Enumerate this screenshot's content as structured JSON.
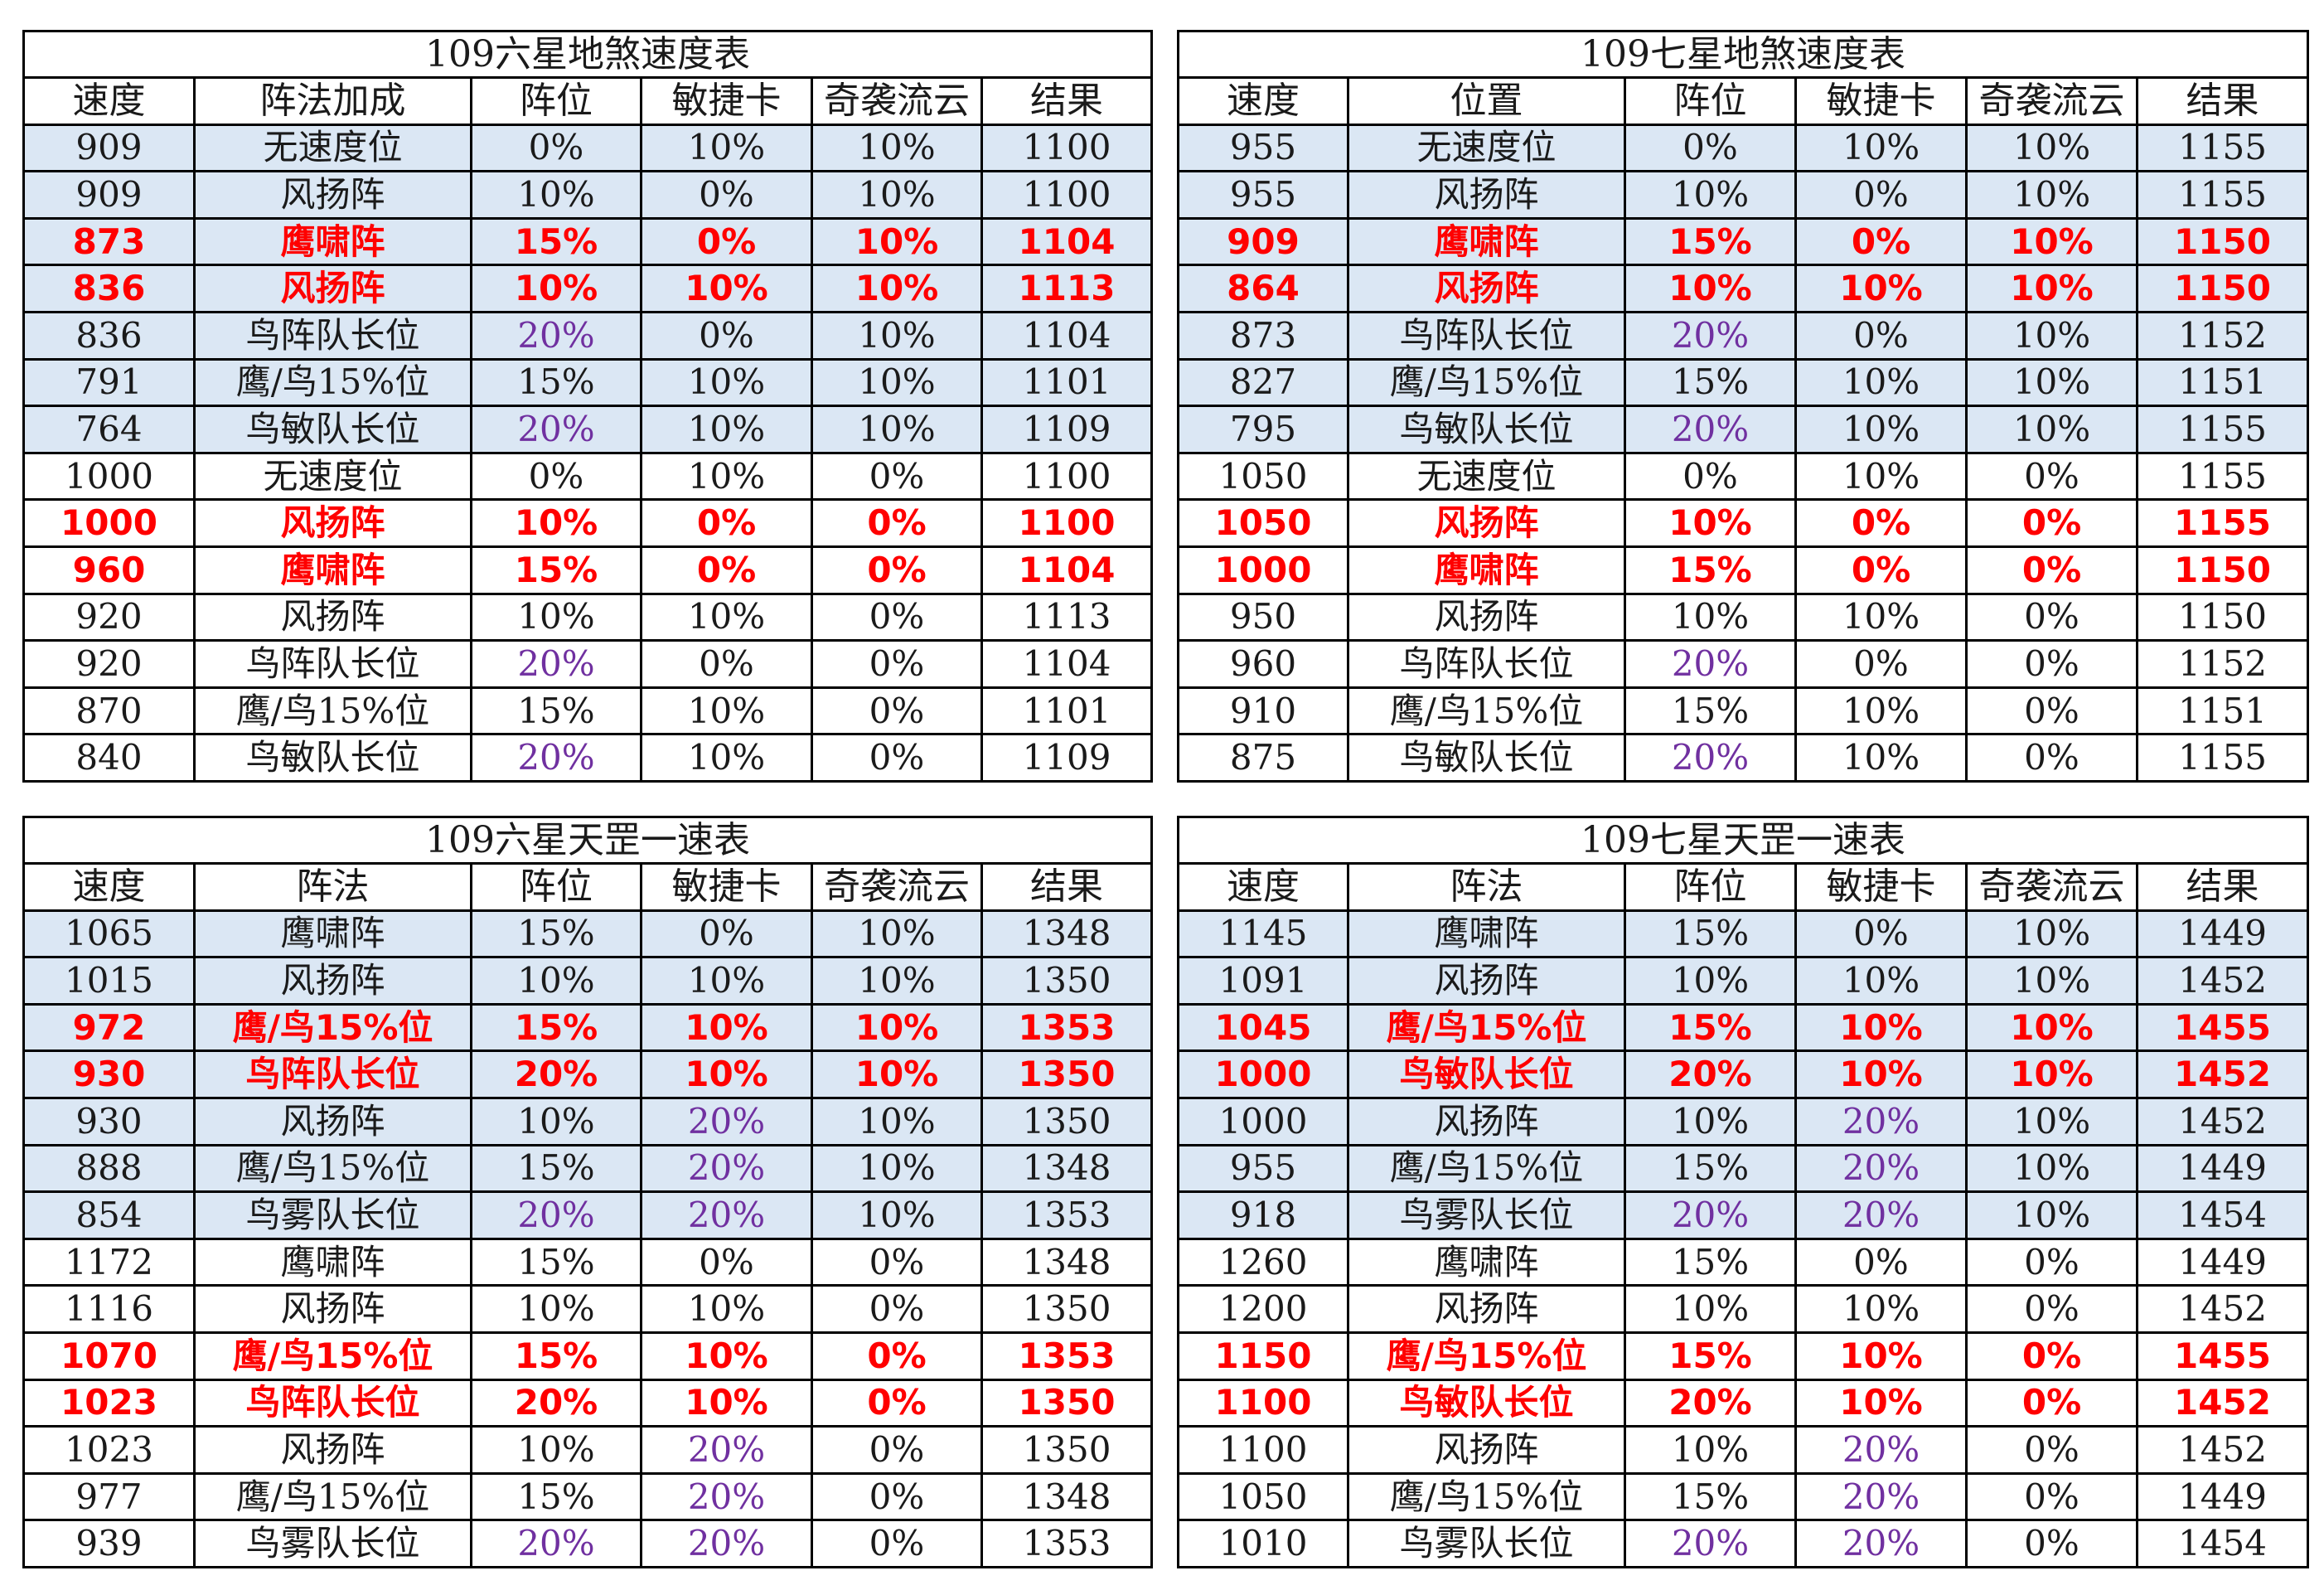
{
  "colors": {
    "highlight_bg": "#dbe7f4",
    "red": "#ff0000",
    "purple": "#7030a0",
    "border": "#000000"
  },
  "tables": [
    {
      "title": "109六星地煞速度表",
      "headers": [
        "速度",
        "阵法加成",
        "阵位",
        "敏捷卡",
        "奇袭流云",
        "结果"
      ],
      "rows": [
        {
          "cells": [
            "909",
            "无速度位",
            "0%",
            "10%",
            "10%",
            "1100"
          ],
          "style": "hl"
        },
        {
          "cells": [
            "909",
            "风扬阵",
            "10%",
            "0%",
            "10%",
            "1100"
          ],
          "style": "hl"
        },
        {
          "cells": [
            "873",
            "鹰啸阵",
            "15%",
            "0%",
            "10%",
            "1104"
          ],
          "style": "hl-red"
        },
        {
          "cells": [
            "836",
            "风扬阵",
            "10%",
            "10%",
            "10%",
            "1113"
          ],
          "style": "hl-red"
        },
        {
          "cells": [
            "836",
            "鸟阵队长位",
            "20%",
            "0%",
            "10%",
            "1104"
          ],
          "style": "hl",
          "purple": [
            2
          ]
        },
        {
          "cells": [
            "791",
            "鹰/鸟15%位",
            "15%",
            "10%",
            "10%",
            "1101"
          ],
          "style": "hl"
        },
        {
          "cells": [
            "764",
            "鸟敏队长位",
            "20%",
            "10%",
            "10%",
            "1109"
          ],
          "style": "hl",
          "purple": [
            2
          ]
        },
        {
          "cells": [
            "1000",
            "无速度位",
            "0%",
            "10%",
            "0%",
            "1100"
          ],
          "style": "plain"
        },
        {
          "cells": [
            "1000",
            "风扬阵",
            "10%",
            "0%",
            "0%",
            "1100"
          ],
          "style": "red"
        },
        {
          "cells": [
            "960",
            "鹰啸阵",
            "15%",
            "0%",
            "0%",
            "1104"
          ],
          "style": "red"
        },
        {
          "cells": [
            "920",
            "风扬阵",
            "10%",
            "10%",
            "0%",
            "1113"
          ],
          "style": "plain"
        },
        {
          "cells": [
            "920",
            "鸟阵队长位",
            "20%",
            "0%",
            "0%",
            "1104"
          ],
          "style": "plain",
          "purple": [
            2
          ]
        },
        {
          "cells": [
            "870",
            "鹰/鸟15%位",
            "15%",
            "10%",
            "0%",
            "1101"
          ],
          "style": "plain"
        },
        {
          "cells": [
            "840",
            "鸟敏队长位",
            "20%",
            "10%",
            "0%",
            "1109"
          ],
          "style": "plain",
          "purple": [
            2
          ]
        }
      ]
    },
    {
      "title": "109七星地煞速度表",
      "headers": [
        "速度",
        "位置",
        "阵位",
        "敏捷卡",
        "奇袭流云",
        "结果"
      ],
      "rows": [
        {
          "cells": [
            "955",
            "无速度位",
            "0%",
            "10%",
            "10%",
            "1155"
          ],
          "style": "hl"
        },
        {
          "cells": [
            "955",
            "风扬阵",
            "10%",
            "0%",
            "10%",
            "1155"
          ],
          "style": "hl"
        },
        {
          "cells": [
            "909",
            "鹰啸阵",
            "15%",
            "0%",
            "10%",
            "1150"
          ],
          "style": "hl-red"
        },
        {
          "cells": [
            "864",
            "风扬阵",
            "10%",
            "10%",
            "10%",
            "1150"
          ],
          "style": "hl-red"
        },
        {
          "cells": [
            "873",
            "鸟阵队长位",
            "20%",
            "0%",
            "10%",
            "1152"
          ],
          "style": "hl",
          "purple": [
            2
          ]
        },
        {
          "cells": [
            "827",
            "鹰/鸟15%位",
            "15%",
            "10%",
            "10%",
            "1151"
          ],
          "style": "hl"
        },
        {
          "cells": [
            "795",
            "鸟敏队长位",
            "20%",
            "10%",
            "10%",
            "1155"
          ],
          "style": "hl",
          "purple": [
            2
          ]
        },
        {
          "cells": [
            "1050",
            "无速度位",
            "0%",
            "10%",
            "0%",
            "1155"
          ],
          "style": "plain"
        },
        {
          "cells": [
            "1050",
            "风扬阵",
            "10%",
            "0%",
            "0%",
            "1155"
          ],
          "style": "red"
        },
        {
          "cells": [
            "1000",
            "鹰啸阵",
            "15%",
            "0%",
            "0%",
            "1150"
          ],
          "style": "red"
        },
        {
          "cells": [
            "950",
            "风扬阵",
            "10%",
            "10%",
            "0%",
            "1150"
          ],
          "style": "plain"
        },
        {
          "cells": [
            "960",
            "鸟阵队长位",
            "20%",
            "0%",
            "0%",
            "1152"
          ],
          "style": "plain",
          "purple": [
            2
          ]
        },
        {
          "cells": [
            "910",
            "鹰/鸟15%位",
            "15%",
            "10%",
            "0%",
            "1151"
          ],
          "style": "plain"
        },
        {
          "cells": [
            "875",
            "鸟敏队长位",
            "20%",
            "10%",
            "0%",
            "1155"
          ],
          "style": "plain",
          "purple": [
            2
          ]
        }
      ]
    },
    {
      "title": "109六星天罡一速表",
      "headers": [
        "速度",
        "阵法",
        "阵位",
        "敏捷卡",
        "奇袭流云",
        "结果"
      ],
      "rows": [
        {
          "cells": [
            "1065",
            "鹰啸阵",
            "15%",
            "0%",
            "10%",
            "1348"
          ],
          "style": "hl"
        },
        {
          "cells": [
            "1015",
            "风扬阵",
            "10%",
            "10%",
            "10%",
            "1350"
          ],
          "style": "hl"
        },
        {
          "cells": [
            "972",
            "鹰/鸟15%位",
            "15%",
            "10%",
            "10%",
            "1353"
          ],
          "style": "hl-red"
        },
        {
          "cells": [
            "930",
            "鸟阵队长位",
            "20%",
            "10%",
            "10%",
            "1350"
          ],
          "style": "hl-red"
        },
        {
          "cells": [
            "930",
            "风扬阵",
            "10%",
            "20%",
            "10%",
            "1350"
          ],
          "style": "hl",
          "purple": [
            3
          ]
        },
        {
          "cells": [
            "888",
            "鹰/鸟15%位",
            "15%",
            "20%",
            "10%",
            "1348"
          ],
          "style": "hl",
          "purple": [
            3
          ]
        },
        {
          "cells": [
            "854",
            "鸟雾队长位",
            "20%",
            "20%",
            "10%",
            "1353"
          ],
          "style": "hl",
          "purple": [
            2,
            3
          ]
        },
        {
          "cells": [
            "1172",
            "鹰啸阵",
            "15%",
            "0%",
            "0%",
            "1348"
          ],
          "style": "plain"
        },
        {
          "cells": [
            "1116",
            "风扬阵",
            "10%",
            "10%",
            "0%",
            "1350"
          ],
          "style": "plain"
        },
        {
          "cells": [
            "1070",
            "鹰/鸟15%位",
            "15%",
            "10%",
            "0%",
            "1353"
          ],
          "style": "red"
        },
        {
          "cells": [
            "1023",
            "鸟阵队长位",
            "20%",
            "10%",
            "0%",
            "1350"
          ],
          "style": "red"
        },
        {
          "cells": [
            "1023",
            "风扬阵",
            "10%",
            "20%",
            "0%",
            "1350"
          ],
          "style": "plain",
          "purple": [
            3
          ]
        },
        {
          "cells": [
            "977",
            "鹰/鸟15%位",
            "15%",
            "20%",
            "0%",
            "1348"
          ],
          "style": "plain",
          "purple": [
            3
          ]
        },
        {
          "cells": [
            "939",
            "鸟雾队长位",
            "20%",
            "20%",
            "0%",
            "1353"
          ],
          "style": "plain",
          "purple": [
            2,
            3
          ]
        }
      ]
    },
    {
      "title": "109七星天罡一速表",
      "headers": [
        "速度",
        "阵法",
        "阵位",
        "敏捷卡",
        "奇袭流云",
        "结果"
      ],
      "rows": [
        {
          "cells": [
            "1145",
            "鹰啸阵",
            "15%",
            "0%",
            "10%",
            "1449"
          ],
          "style": "hl"
        },
        {
          "cells": [
            "1091",
            "风扬阵",
            "10%",
            "10%",
            "10%",
            "1452"
          ],
          "style": "hl"
        },
        {
          "cells": [
            "1045",
            "鹰/鸟15%位",
            "15%",
            "10%",
            "10%",
            "1455"
          ],
          "style": "hl-red"
        },
        {
          "cells": [
            "1000",
            "鸟敏队长位",
            "20%",
            "10%",
            "10%",
            "1452"
          ],
          "style": "hl-red"
        },
        {
          "cells": [
            "1000",
            "风扬阵",
            "10%",
            "20%",
            "10%",
            "1452"
          ],
          "style": "hl",
          "purple": [
            3
          ]
        },
        {
          "cells": [
            "955",
            "鹰/鸟15%位",
            "15%",
            "20%",
            "10%",
            "1449"
          ],
          "style": "hl",
          "purple": [
            3
          ]
        },
        {
          "cells": [
            "918",
            "鸟雾队长位",
            "20%",
            "20%",
            "10%",
            "1454"
          ],
          "style": "hl",
          "purple": [
            2,
            3
          ]
        },
        {
          "cells": [
            "1260",
            "鹰啸阵",
            "15%",
            "0%",
            "0%",
            "1449"
          ],
          "style": "plain"
        },
        {
          "cells": [
            "1200",
            "风扬阵",
            "10%",
            "10%",
            "0%",
            "1452"
          ],
          "style": "plain"
        },
        {
          "cells": [
            "1150",
            "鹰/鸟15%位",
            "15%",
            "10%",
            "0%",
            "1455"
          ],
          "style": "red"
        },
        {
          "cells": [
            "1100",
            "鸟敏队长位",
            "20%",
            "10%",
            "0%",
            "1452"
          ],
          "style": "red"
        },
        {
          "cells": [
            "1100",
            "风扬阵",
            "10%",
            "20%",
            "0%",
            "1452"
          ],
          "style": "plain",
          "purple": [
            3
          ]
        },
        {
          "cells": [
            "1050",
            "鹰/鸟15%位",
            "15%",
            "20%",
            "0%",
            "1449"
          ],
          "style": "plain",
          "purple": [
            3
          ]
        },
        {
          "cells": [
            "1010",
            "鸟雾队长位",
            "20%",
            "20%",
            "0%",
            "1454"
          ],
          "style": "plain",
          "purple": [
            2,
            3
          ]
        }
      ]
    }
  ]
}
